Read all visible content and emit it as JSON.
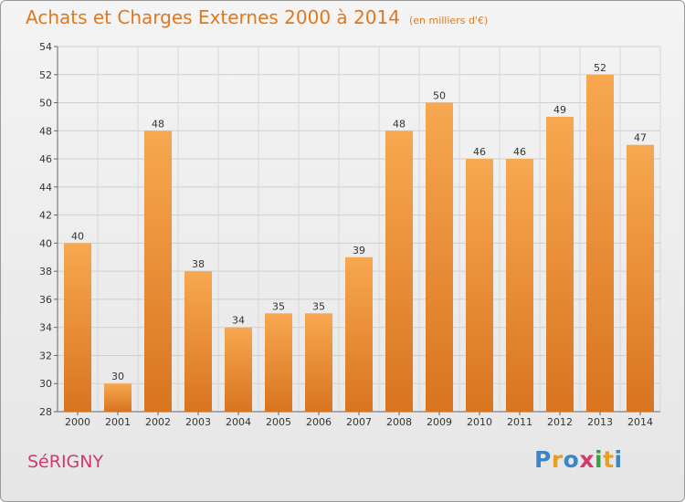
{
  "title": "Achats et Charges Externes 2000 à 2014",
  "subtitle": "(en milliers d'€)",
  "commune": "SéRIGNY",
  "logo": {
    "letters": [
      "P",
      "r",
      "o",
      "x",
      "i",
      "t",
      "i"
    ],
    "colors": [
      "#3a86c8",
      "#e8a020",
      "#3a86c8",
      "#d13a6a",
      "#3aa040",
      "#e8a020",
      "#3a86c8"
    ]
  },
  "colors": {
    "bar_light": "#f7a850",
    "bar_dark": "#d9741f",
    "title": "#e07820",
    "commune": "#d13a6a"
  },
  "chart_data": {
    "type": "bar",
    "categories": [
      "2000",
      "2001",
      "2002",
      "2003",
      "2004",
      "2005",
      "2006",
      "2007",
      "2008",
      "2009",
      "2010",
      "2011",
      "2012",
      "2013",
      "2014"
    ],
    "values": [
      40,
      30,
      48,
      38,
      34,
      35,
      35,
      39,
      48,
      50,
      46,
      46,
      49,
      52,
      47
    ],
    "title": "Achats et Charges Externes 2000 à 2014",
    "xlabel": "",
    "ylabel": "",
    "ylim": [
      28,
      54
    ],
    "yticks": [
      28,
      30,
      32,
      34,
      36,
      38,
      40,
      42,
      44,
      46,
      48,
      50,
      52,
      54
    ],
    "grid": true
  }
}
